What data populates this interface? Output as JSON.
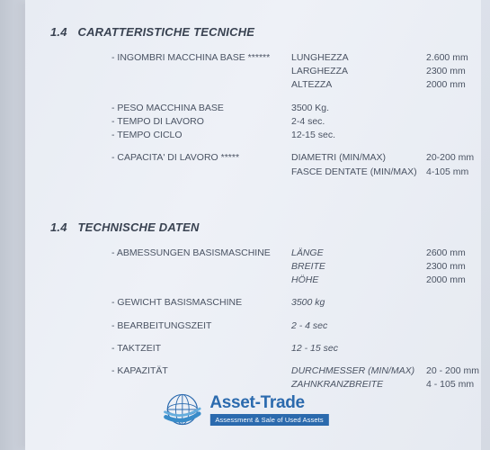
{
  "sections": {
    "it": {
      "num": "1.4",
      "title": "CARATTERISTICHE TECNICHE",
      "rows": [
        {
          "label": "- INGOMBRI MACCHINA BASE ******",
          "mid": "LUNGHEZZA",
          "val": "2.600 mm"
        },
        {
          "label": "",
          "mid": "LARGHEZZA",
          "val": "2300 mm"
        },
        {
          "label": "",
          "mid": "ALTEZZA",
          "val": "2000 mm"
        },
        {
          "gap": true
        },
        {
          "label": "- PESO MACCHINA BASE",
          "mid": "3500 Kg.",
          "val": ""
        },
        {
          "label": "- TEMPO DI LAVORO",
          "mid": "2-4 sec.",
          "val": ""
        },
        {
          "label": "- TEMPO CICLO",
          "mid": "12-15 sec.",
          "val": ""
        },
        {
          "gap": true
        },
        {
          "label": "- CAPACITA' DI LAVORO *****",
          "mid": "DIAMETRI (MIN/MAX)",
          "val": "20-200 mm"
        },
        {
          "label": "",
          "mid": "FASCE DENTATE (MIN/MAX)",
          "val": "4-105 mm"
        }
      ]
    },
    "de": {
      "num": "1.4",
      "title": "TECHNISCHE DATEN",
      "rows": [
        {
          "label": "- ABMESSUNGEN BASISMASCHINE",
          "mid": "LÄNGE",
          "val": "2600 mm",
          "italic": true
        },
        {
          "label": "",
          "mid": "BREITE",
          "val": "2300 mm",
          "italic": true
        },
        {
          "label": "",
          "mid": "HÖHE",
          "val": "2000 mm",
          "italic": true
        },
        {
          "gap": true
        },
        {
          "label": "- GEWICHT BASISMASCHINE",
          "mid": "3500 kg",
          "val": "",
          "italic": true
        },
        {
          "gap": true
        },
        {
          "label": "- BEARBEITUNGSZEIT",
          "mid": "2 - 4 sec",
          "val": "",
          "italic": true
        },
        {
          "gap": true
        },
        {
          "label": "- TAKTZEIT",
          "mid": "12 - 15 sec",
          "val": "",
          "italic": true
        },
        {
          "gap": true
        },
        {
          "label": "- KAPAZITÄT",
          "mid": "DURCHMESSER (MIN/MAX)",
          "val": "20 - 200 mm",
          "italic": true
        },
        {
          "label": "",
          "mid": "ZAHNKRANZBREITE",
          "val": "4 - 105 mm",
          "italic": true
        }
      ]
    }
  },
  "watermark": {
    "brand": "Asset-Trade",
    "tagline": "Assessment & Sale of Used Assets",
    "globe_stroke": "#1b5fa8",
    "globe_arc": "#2a84c6"
  },
  "colors": {
    "text": "#4a5363",
    "heading": "#3a4352",
    "brand_blue": "#1b5fa8"
  }
}
